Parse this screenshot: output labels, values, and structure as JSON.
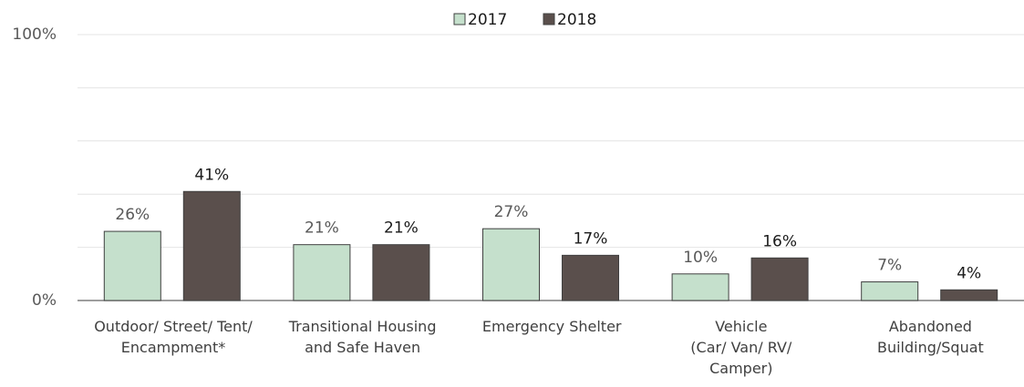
{
  "chart_data": {
    "type": "bar",
    "categories": [
      "Outdoor/ Street/ Tent/\nEncampment*",
      "Transitional Housing\nand Safe Haven",
      "Emergency Shelter",
      "Vehicle\n(Car/ Van/ RV/\nCamper)",
      "Abandoned\nBuilding/Squat"
    ],
    "series": [
      {
        "name": "2017",
        "color": "#c5e0cc",
        "values": [
          26,
          21,
          27,
          10,
          7
        ],
        "value_labels": [
          "26%",
          "21%",
          "27%",
          "10%",
          "7%"
        ]
      },
      {
        "name": "2018",
        "color": "#5a4f4c",
        "values": [
          41,
          21,
          17,
          16,
          4
        ],
        "value_labels": [
          "41%",
          "21%",
          "17%",
          "16%",
          "4%"
        ]
      }
    ],
    "ylim": [
      0,
      100
    ],
    "yticks": [
      {
        "value": 0,
        "label": "0%"
      },
      {
        "value": 100,
        "label": "100%"
      }
    ],
    "minor_yticks": [
      20,
      40,
      60,
      80
    ],
    "grid": true,
    "legend": "top"
  }
}
